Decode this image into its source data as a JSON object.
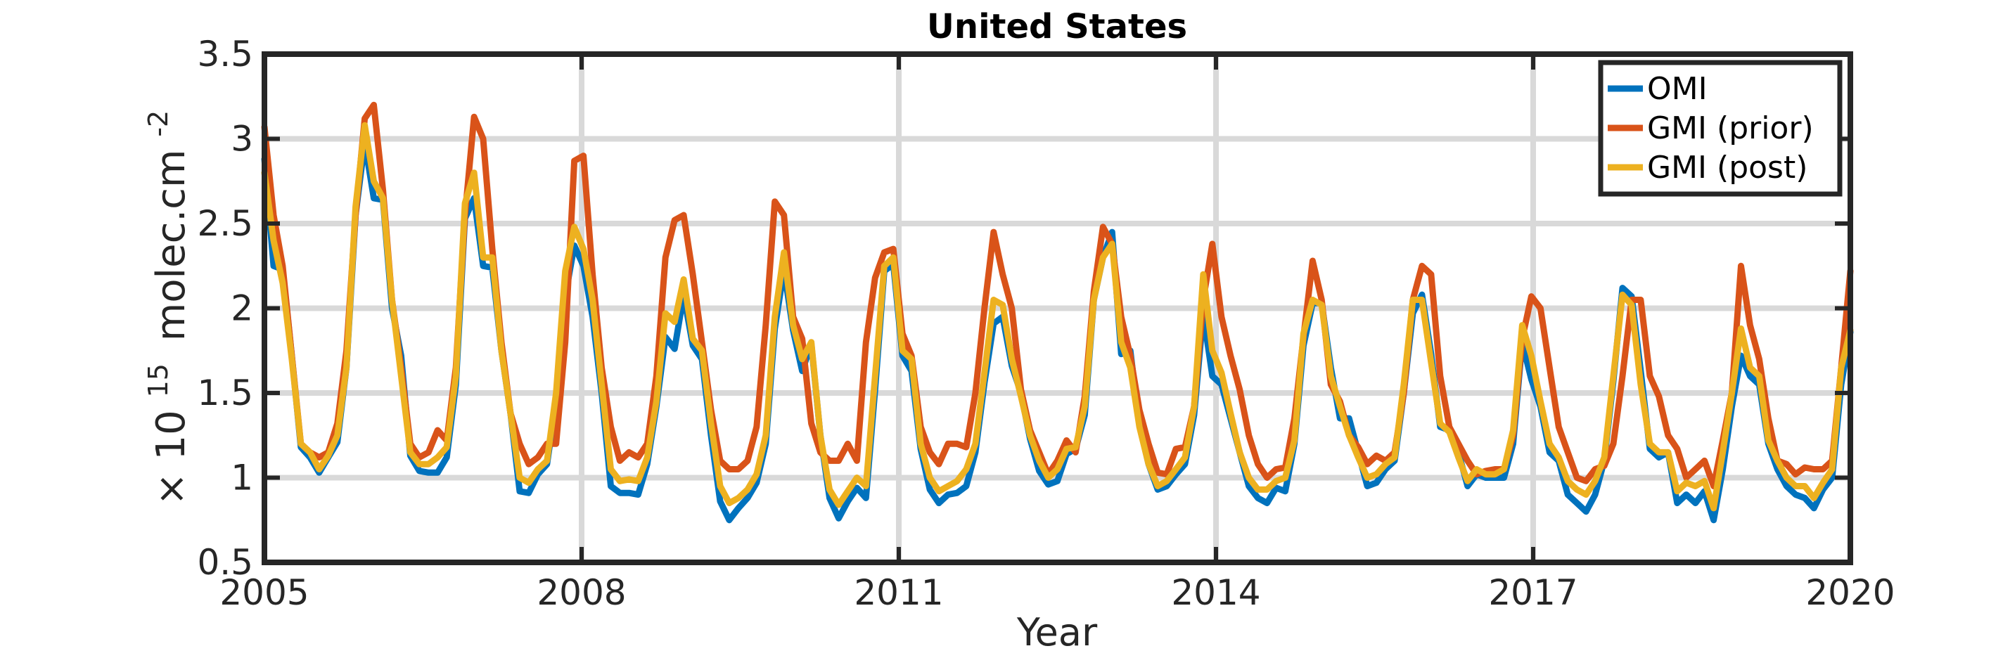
{
  "chart_data": {
    "type": "line",
    "title": "United States",
    "xlabel": "Year",
    "ylabel": {
      "prefix": "× 10",
      "exponent": "15",
      "unit": "molec.cm",
      "unit_exponent": "-2"
    },
    "xlim": [
      2005,
      2020
    ],
    "ylim": [
      0.5,
      3.5
    ],
    "xticks": [
      2005,
      2008,
      2011,
      2014,
      2017,
      2020
    ],
    "xtick_labels": [
      "2005",
      "2008",
      "2011",
      "2014",
      "2017",
      "2020"
    ],
    "yticks": [
      0.5,
      1,
      1.5,
      2,
      2.5,
      3,
      3.5
    ],
    "ytick_labels": [
      "0.5",
      "1",
      "1.5",
      "2",
      "2.5",
      "3",
      "3.5"
    ],
    "grid": true,
    "legend_position": "top-right",
    "series": [
      {
        "name": "OMI",
        "color": "#0072BD",
        "values": [
          2.88,
          2.25,
          2.23,
          1.72,
          1.18,
          1.12,
          1.03,
          1.12,
          1.21,
          1.65,
          2.55,
          2.98,
          2.65,
          2.64,
          2.0,
          1.72,
          1.13,
          1.04,
          1.03,
          1.03,
          1.12,
          1.55,
          2.53,
          2.65,
          2.25,
          2.24,
          1.75,
          1.38,
          0.92,
          0.91,
          1.02,
          1.08,
          1.45,
          2.07,
          2.37,
          2.25,
          1.95,
          1.5,
          0.95,
          0.91,
          0.91,
          0.9,
          1.08,
          1.42,
          1.83,
          1.76,
          2.08,
          1.78,
          1.7,
          1.25,
          0.86,
          0.75,
          0.82,
          0.88,
          0.97,
          1.2,
          1.88,
          2.23,
          1.87,
          1.63,
          1.79,
          1.25,
          0.88,
          0.76,
          0.86,
          0.94,
          0.88,
          1.52,
          2.22,
          2.26,
          1.72,
          1.63,
          1.17,
          0.93,
          0.85,
          0.9,
          0.91,
          0.95,
          1.15,
          1.56,
          1.91,
          1.95,
          1.66,
          1.5,
          1.23,
          1.04,
          0.96,
          0.98,
          1.14,
          1.17,
          1.37,
          2.05,
          2.3,
          2.45,
          1.73,
          1.75,
          1.31,
          1.08,
          0.93,
          0.95,
          1.02,
          1.08,
          1.37,
          1.97,
          1.6,
          1.55,
          1.35,
          1.15,
          0.95,
          0.88,
          0.85,
          0.94,
          0.92,
          1.2,
          1.78,
          2.03,
          2.03,
          1.65,
          1.35,
          1.35,
          1.15,
          0.95,
          0.97,
          1.05,
          1.1,
          1.5,
          1.97,
          2.08,
          1.73,
          1.3,
          1.28,
          1.15,
          0.95,
          1.02,
          1.0,
          1.0,
          1.0,
          1.2,
          1.8,
          1.58,
          1.42,
          1.15,
          1.1,
          0.9,
          0.85,
          0.8,
          0.9,
          1.1,
          1.57,
          2.12,
          2.07,
          1.63,
          1.17,
          1.12,
          1.15,
          0.85,
          0.9,
          0.85,
          0.92,
          0.75,
          1.05,
          1.42,
          1.72,
          1.6,
          1.55,
          1.2,
          1.05,
          0.95,
          0.9,
          0.88,
          0.82,
          0.93,
          1.0,
          1.55,
          1.86
        ]
      },
      {
        "name": "GMI (prior)",
        "color": "#D95319",
        "values": [
          3.07,
          2.55,
          2.25,
          1.72,
          1.2,
          1.15,
          1.12,
          1.15,
          1.32,
          1.75,
          2.55,
          3.12,
          3.2,
          2.7,
          2.05,
          1.65,
          1.2,
          1.12,
          1.15,
          1.28,
          1.22,
          1.65,
          2.55,
          3.13,
          3.0,
          2.35,
          1.8,
          1.38,
          1.2,
          1.08,
          1.12,
          1.2,
          1.2,
          1.8,
          2.87,
          2.9,
          2.2,
          1.65,
          1.3,
          1.1,
          1.15,
          1.12,
          1.2,
          1.6,
          2.3,
          2.52,
          2.55,
          2.2,
          1.8,
          1.4,
          1.1,
          1.05,
          1.05,
          1.1,
          1.3,
          1.9,
          2.63,
          2.55,
          1.95,
          1.82,
          1.32,
          1.15,
          1.1,
          1.1,
          1.2,
          1.1,
          1.8,
          2.18,
          2.33,
          2.35,
          1.85,
          1.72,
          1.3,
          1.15,
          1.08,
          1.2,
          1.2,
          1.18,
          1.5,
          2.0,
          2.45,
          2.2,
          2.0,
          1.52,
          1.28,
          1.15,
          1.02,
          1.1,
          1.22,
          1.15,
          1.48,
          2.1,
          2.48,
          2.38,
          1.95,
          1.72,
          1.4,
          1.2,
          1.03,
          1.02,
          1.17,
          1.18,
          1.42,
          2.05,
          2.38,
          1.95,
          1.72,
          1.52,
          1.25,
          1.08,
          1.0,
          1.05,
          1.06,
          1.35,
          1.83,
          2.28,
          2.05,
          1.55,
          1.45,
          1.25,
          1.18,
          1.08,
          1.13,
          1.1,
          1.15,
          1.5,
          2.05,
          2.25,
          2.2,
          1.6,
          1.3,
          1.2,
          1.1,
          1.02,
          1.04,
          1.05,
          1.05,
          1.25,
          1.82,
          2.07,
          2.0,
          1.65,
          1.3,
          1.15,
          1.0,
          0.98,
          1.05,
          1.07,
          1.2,
          1.6,
          2.05,
          2.05,
          1.6,
          1.48,
          1.25,
          1.17,
          1.0,
          1.05,
          1.1,
          0.95,
          1.22,
          1.5,
          2.25,
          1.9,
          1.7,
          1.35,
          1.1,
          1.08,
          1.02,
          1.06,
          1.05,
          1.05,
          1.1,
          1.65,
          2.22
        ]
      },
      {
        "name": "GMI (post)",
        "color": "#EDB120",
        "values": [
          2.8,
          2.4,
          2.15,
          1.7,
          1.2,
          1.15,
          1.05,
          1.13,
          1.25,
          1.65,
          2.6,
          3.08,
          2.75,
          2.65,
          2.05,
          1.6,
          1.15,
          1.08,
          1.08,
          1.12,
          1.18,
          1.6,
          2.62,
          2.8,
          2.3,
          2.3,
          1.75,
          1.38,
          1.0,
          0.97,
          1.05,
          1.1,
          1.5,
          2.22,
          2.48,
          2.35,
          2.05,
          1.55,
          1.05,
          0.98,
          0.99,
          0.98,
          1.12,
          1.45,
          1.97,
          1.92,
          2.17,
          1.82,
          1.75,
          1.32,
          0.95,
          0.85,
          0.88,
          0.93,
          1.02,
          1.25,
          1.95,
          2.33,
          1.9,
          1.7,
          1.8,
          1.25,
          0.93,
          0.84,
          0.92,
          1.0,
          0.95,
          1.6,
          2.25,
          2.3,
          1.75,
          1.7,
          1.2,
          1.0,
          0.92,
          0.95,
          0.98,
          1.05,
          1.2,
          1.62,
          2.05,
          2.02,
          1.7,
          1.48,
          1.25,
          1.1,
          1.0,
          1.05,
          1.17,
          1.18,
          1.42,
          2.05,
          2.3,
          2.38,
          1.8,
          1.65,
          1.3,
          1.08,
          0.95,
          0.98,
          1.05,
          1.12,
          1.42,
          2.2,
          1.75,
          1.62,
          1.38,
          1.15,
          1.0,
          0.93,
          0.93,
          0.98,
          1.0,
          1.22,
          1.85,
          2.05,
          2.02,
          1.6,
          1.42,
          1.25,
          1.12,
          1.0,
          1.02,
          1.08,
          1.12,
          1.55,
          2.05,
          2.05,
          1.68,
          1.32,
          1.27,
          1.12,
          0.98,
          1.05,
          1.02,
          1.02,
          1.05,
          1.28,
          1.9,
          1.72,
          1.45,
          1.2,
          1.12,
          0.98,
          0.93,
          0.9,
          0.98,
          1.12,
          1.6,
          2.08,
          2.02,
          1.55,
          1.2,
          1.15,
          1.15,
          0.92,
          0.97,
          0.95,
          0.98,
          0.82,
          1.15,
          1.5,
          1.88,
          1.65,
          1.6,
          1.22,
          1.1,
          1.0,
          0.95,
          0.95,
          0.88,
          0.97,
          1.05,
          1.65,
          1.87
        ]
      }
    ]
  }
}
